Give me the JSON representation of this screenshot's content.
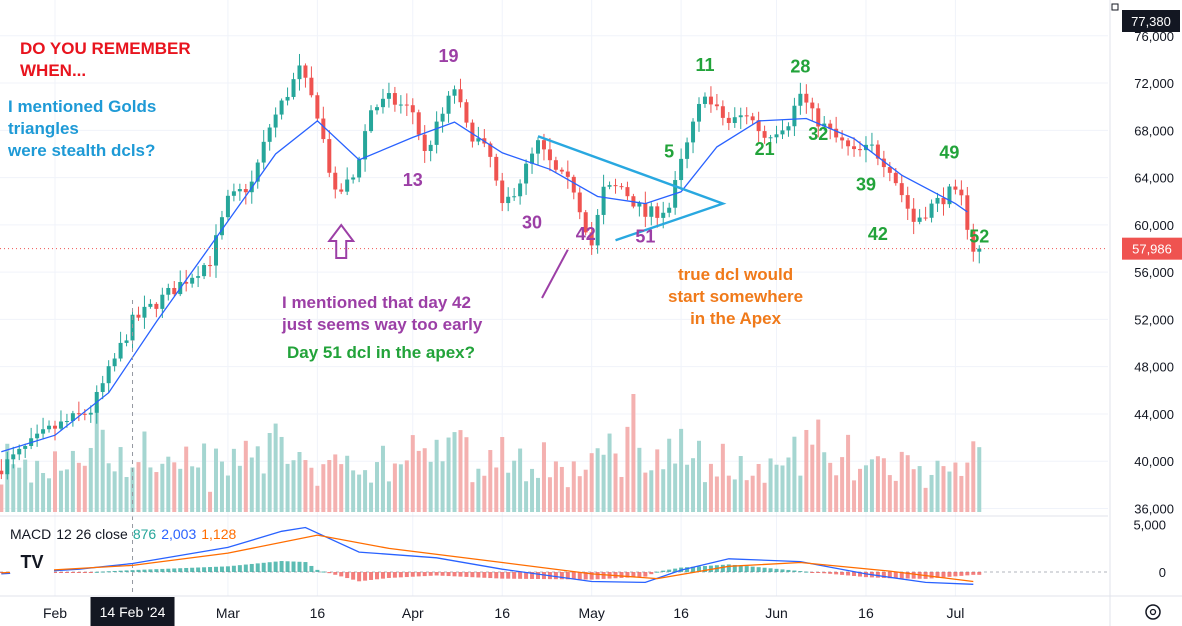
{
  "chart_data": {
    "type": "candlestick",
    "price_axis": {
      "ticks": [
        36000,
        40000,
        44000,
        48000,
        52000,
        56000,
        60000,
        64000,
        68000,
        72000,
        76000
      ],
      "labels": [
        "36,000",
        "40,000",
        "44,000",
        "48,000",
        "52,000",
        "56,000",
        "60,000",
        "64,000",
        "68,000",
        "72,000",
        "76,000"
      ],
      "top_badge": "77,380",
      "last_price": 57986,
      "last_price_label": "57,986"
    },
    "time_axis": {
      "labels": [
        {
          "text": "Feb",
          "date": "2024-02-01"
        },
        {
          "text": "Mar",
          "date": "2024-03-01"
        },
        {
          "text": "16",
          "date": "2024-03-16"
        },
        {
          "text": "Apr",
          "date": "2024-04-01"
        },
        {
          "text": "16",
          "date": "2024-04-16"
        },
        {
          "text": "May",
          "date": "2024-05-01"
        },
        {
          "text": "16",
          "date": "2024-05-16"
        },
        {
          "text": "Jun",
          "date": "2024-06-01"
        },
        {
          "text": "16",
          "date": "2024-06-16"
        },
        {
          "text": "Jul",
          "date": "2024-07-01"
        }
      ],
      "crosshair_label": "14 Feb '24",
      "crosshair_date": "2024-02-14",
      "start_date": "2024-01-23",
      "end_date": "2024-07-05"
    },
    "close_path": [
      [
        "2024-01-23",
        39500
      ],
      [
        "2024-01-31",
        42600
      ],
      [
        "2024-02-07",
        44300
      ],
      [
        "2024-02-14",
        51800
      ],
      [
        "2024-02-27",
        57000
      ],
      [
        "2024-03-01",
        62000
      ],
      [
        "2024-03-05",
        63500
      ],
      [
        "2024-03-08",
        68300
      ],
      [
        "2024-03-13",
        73100
      ],
      [
        "2024-03-16",
        69500
      ],
      [
        "2024-03-19",
        62400
      ],
      [
        "2024-03-22",
        64000
      ],
      [
        "2024-03-25",
        69800
      ],
      [
        "2024-03-28",
        70600
      ],
      [
        "2024-04-01",
        69600
      ],
      [
        "2024-04-03",
        66000
      ],
      [
        "2024-04-08",
        71600
      ],
      [
        "2024-04-10",
        68200
      ],
      [
        "2024-04-12",
        67100
      ],
      [
        "2024-04-14",
        65600
      ],
      [
        "2024-04-16",
        61300
      ],
      [
        "2024-04-19",
        63800
      ],
      [
        "2024-04-22",
        66800
      ],
      [
        "2024-04-25",
        64400
      ],
      [
        "2024-04-28",
        63100
      ],
      [
        "2024-05-01",
        58300
      ],
      [
        "2024-05-03",
        62900
      ],
      [
        "2024-05-06",
        63200
      ],
      [
        "2024-05-10",
        60800
      ],
      [
        "2024-05-14",
        61500
      ],
      [
        "2024-05-16",
        65200
      ],
      [
        "2024-05-20",
        71400
      ],
      [
        "2024-05-21",
        70100
      ],
      [
        "2024-05-24",
        68600
      ],
      [
        "2024-05-27",
        69400
      ],
      [
        "2024-05-30",
        67500
      ],
      [
        "2024-06-03",
        68800
      ],
      [
        "2024-06-05",
        71100
      ],
      [
        "2024-06-07",
        69300
      ],
      [
        "2024-06-11",
        67300
      ],
      [
        "2024-06-14",
        66000
      ],
      [
        "2024-06-17",
        66500
      ],
      [
        "2024-06-20",
        64900
      ],
      [
        "2024-06-24",
        60300
      ],
      [
        "2024-06-27",
        61600
      ],
      [
        "2024-06-30",
        62700
      ],
      [
        "2024-07-02",
        62100
      ],
      [
        "2024-07-04",
        57986
      ]
    ],
    "ma_path": [
      [
        "2024-01-23",
        40800
      ],
      [
        "2024-02-01",
        42200
      ],
      [
        "2024-02-10",
        45800
      ],
      [
        "2024-02-18",
        51800
      ],
      [
        "2024-03-01",
        60300
      ],
      [
        "2024-03-09",
        66000
      ],
      [
        "2024-03-16",
        68800
      ],
      [
        "2024-03-23",
        65500
      ],
      [
        "2024-04-01",
        67400
      ],
      [
        "2024-04-08",
        68700
      ],
      [
        "2024-04-16",
        66100
      ],
      [
        "2024-04-24",
        64700
      ],
      [
        "2024-05-02",
        62400
      ],
      [
        "2024-05-10",
        61800
      ],
      [
        "2024-05-16",
        62800
      ],
      [
        "2024-05-22",
        66600
      ],
      [
        "2024-05-29",
        68800
      ],
      [
        "2024-06-06",
        69000
      ],
      [
        "2024-06-14",
        67300
      ],
      [
        "2024-06-22",
        64200
      ],
      [
        "2024-07-01",
        61800
      ],
      [
        "2024-07-03",
        61100
      ]
    ],
    "volume_levels": [
      0.35,
      0.6,
      0.45,
      0.4,
      0.55,
      0.3,
      0.5,
      0.45,
      0.4,
      0.6,
      0.5,
      0.55,
      0.7,
      0.65,
      0.5,
      0.8,
      1.0,
      0.75,
      0.6,
      0.45,
      0.55,
      0.5,
      0.6,
      0.4,
      0.65,
      0.55,
      0.5,
      0.6,
      0.45,
      0.4
    ],
    "macd": {
      "title": "MACD",
      "params": "12 26 close",
      "hist_label": "876",
      "macd_label": "2,003",
      "signal_label": "1,128",
      "axis_ticks": [
        0,
        5000
      ],
      "axis_labels": [
        "0",
        "5,000"
      ],
      "macd_path": [
        [
          "2024-01-23",
          -200
        ],
        [
          "2024-02-05",
          300
        ],
        [
          "2024-02-14",
          900
        ],
        [
          "2024-03-01",
          2600
        ],
        [
          "2024-03-10",
          4300
        ],
        [
          "2024-03-14",
          4700
        ],
        [
          "2024-03-23",
          2100
        ],
        [
          "2024-04-05",
          1500
        ],
        [
          "2024-04-16",
          300
        ],
        [
          "2024-05-01",
          -1000
        ],
        [
          "2024-05-10",
          -1100
        ],
        [
          "2024-05-16",
          200
        ],
        [
          "2024-05-24",
          1400
        ],
        [
          "2024-06-05",
          1100
        ],
        [
          "2024-06-16",
          -200
        ],
        [
          "2024-06-26",
          -1100
        ],
        [
          "2024-07-04",
          -1300
        ]
      ],
      "signal_path": [
        [
          "2024-01-23",
          -100
        ],
        [
          "2024-02-14",
          700
        ],
        [
          "2024-03-01",
          2000
        ],
        [
          "2024-03-16",
          3900
        ],
        [
          "2024-03-28",
          2500
        ],
        [
          "2024-04-16",
          1000
        ],
        [
          "2024-05-01",
          -200
        ],
        [
          "2024-05-12",
          -700
        ],
        [
          "2024-05-24",
          600
        ],
        [
          "2024-06-05",
          1000
        ],
        [
          "2024-06-20",
          100
        ],
        [
          "2024-07-04",
          -1000
        ]
      ]
    },
    "annotations": {
      "header_line1": "DO YOU REMEMBER",
      "header_line2": "WHEN...",
      "blue_line1": "I mentioned Golds",
      "blue_line2": "triangles",
      "blue_line3": "were stealth dcls?",
      "purple_line1": "I mentioned that day 42",
      "purple_line2": "just seems way too early",
      "green_line": "Day 51 dcl in the apex?",
      "orange_line1": "true dcl would",
      "orange_line2": "start somewhere",
      "orange_line3": "in the Apex"
    },
    "count_labels": [
      {
        "text": "19",
        "date": "2024-04-07",
        "price": 73800,
        "color": "purple"
      },
      {
        "text": "13",
        "date": "2024-04-01",
        "price": 63300,
        "color": "purple"
      },
      {
        "text": "30",
        "date": "2024-04-21",
        "price": 59700,
        "color": "purple"
      },
      {
        "text": "42",
        "date": "2024-04-30",
        "price": 58700,
        "color": "purple"
      },
      {
        "text": "51",
        "date": "2024-05-10",
        "price": 58500,
        "color": "purple"
      },
      {
        "text": "5",
        "date": "2024-05-14",
        "price": 65700,
        "color": "green"
      },
      {
        "text": "11",
        "date": "2024-05-20",
        "price": 73000,
        "color": "green"
      },
      {
        "text": "21",
        "date": "2024-05-30",
        "price": 65900,
        "color": "green"
      },
      {
        "text": "28",
        "date": "2024-06-05",
        "price": 72900,
        "color": "green"
      },
      {
        "text": "32",
        "date": "2024-06-08",
        "price": 67200,
        "color": "green"
      },
      {
        "text": "39",
        "date": "2024-06-16",
        "price": 62900,
        "color": "green"
      },
      {
        "text": "42",
        "date": "2024-06-18",
        "price": 58700,
        "color": "green"
      },
      {
        "text": "49",
        "date": "2024-06-30",
        "price": 65600,
        "color": "green"
      },
      {
        "text": "52",
        "date": "2024-07-05",
        "price": 58500,
        "color": "green"
      }
    ],
    "colors": {
      "up": "#26a69a",
      "down": "#ef5350",
      "ma": "#2962ff",
      "macd_line": "#2962ff",
      "signal_line": "#ff6d00",
      "header_red": "#e8141e",
      "blue_text": "#1e9ad6",
      "purple_text": "#9c3fa6",
      "green_text": "#22a33a",
      "orange_text": "#f07a1a",
      "triangle": "#29a8e0"
    },
    "logo_text": "TV",
    "settings_icon": "gear-icon"
  }
}
